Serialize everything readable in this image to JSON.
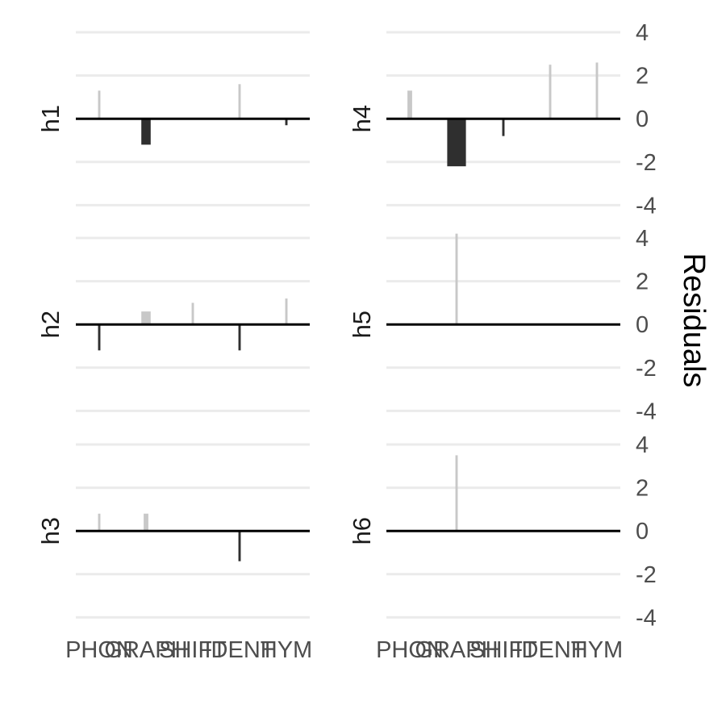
{
  "chart_data": {
    "type": "bar",
    "facet": "residuals-by-panel",
    "categories": [
      "PHON",
      "GRAPH",
      "SHIFT",
      "IDENT",
      "HYM"
    ],
    "category_tick_labels": [
      "PHON",
      "GRAPH",
      "SHIFT",
      "IDENT",
      "HYM"
    ],
    "ylabel": "Residuals",
    "ylim": [
      -4,
      4
    ],
    "yticks": [
      "4",
      "2",
      "0",
      "-2",
      "-4"
    ],
    "grid": true,
    "panels": [
      {
        "label": "h1",
        "values": [
          1.3,
          -1.2,
          0,
          1.6,
          -0.3
        ],
        "widths": [
          0.05,
          0.2,
          0,
          0.05,
          0.05
        ]
      },
      {
        "label": "h2",
        "values": [
          -1.2,
          0.6,
          1.0,
          -1.2,
          1.2
        ],
        "widths": [
          0.05,
          0.2,
          0.05,
          0.05,
          0.05
        ]
      },
      {
        "label": "h3",
        "values": [
          0.8,
          0.8,
          0,
          -1.4,
          0
        ],
        "widths": [
          0.05,
          0.1,
          0,
          0.05,
          0
        ]
      },
      {
        "label": "h4",
        "values": [
          1.3,
          -2.2,
          -0.8,
          2.5,
          2.6
        ],
        "widths": [
          0.1,
          0.4,
          0.05,
          0.05,
          0.05
        ]
      },
      {
        "label": "h5",
        "values": [
          0,
          4.2,
          0,
          0,
          0
        ],
        "widths": [
          0,
          0.05,
          0,
          0,
          0
        ]
      },
      {
        "label": "h6",
        "values": [
          0,
          3.5,
          0,
          0,
          0
        ],
        "widths": [
          0,
          0.05,
          0,
          0,
          0
        ]
      }
    ],
    "bar_colors": {
      "positive": "#c8c8c8",
      "negative": "#2f2f2f"
    }
  }
}
